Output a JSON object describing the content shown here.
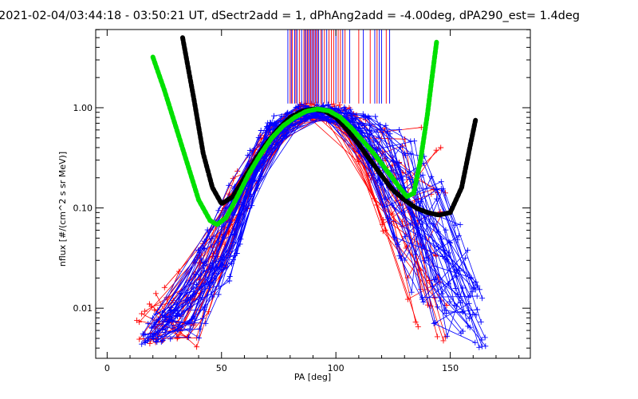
{
  "chart_data": {
    "type": "line",
    "title": "2021-02-04/03:44:18 - 03:50:21 UT, dSectr2add = 1, dPhAng2add = -4.00deg, dPA290_est=   1.4deg",
    "xlabel": "PA [deg]",
    "ylabel": "nflux [#/(cm^2 s sr MeV)]",
    "xlim": [
      -5,
      185
    ],
    "ylim_log10": [
      -2.5,
      0.78
    ],
    "x_scale": "linear",
    "y_scale": "log",
    "x_ticks": [
      0,
      50,
      100,
      150
    ],
    "x_tick_labels": [
      "0",
      "50",
      "100",
      "150"
    ],
    "y_ticks": [
      0.01,
      0.1,
      1.0
    ],
    "y_tick_labels": [
      "0.01",
      "0.10",
      "1.00"
    ],
    "grid": false,
    "legend": "none",
    "colors": {
      "red_series": "#ff0000",
      "blue_series": "#0000ff",
      "black_fit": "#000000",
      "green_fit": "#00e000"
    },
    "black_fit_curve": {
      "x": [
        33,
        38,
        42,
        46,
        50,
        55,
        60,
        65,
        70,
        75,
        80,
        85,
        90,
        95,
        100,
        105,
        110,
        115,
        120,
        125,
        130,
        135,
        140,
        145,
        150,
        155,
        158,
        161
      ],
      "y": [
        5.0,
        1.2,
        0.35,
        0.16,
        0.11,
        0.13,
        0.2,
        0.31,
        0.45,
        0.62,
        0.8,
        0.92,
        0.97,
        0.93,
        0.8,
        0.6,
        0.43,
        0.3,
        0.21,
        0.15,
        0.12,
        0.1,
        0.09,
        0.085,
        0.09,
        0.16,
        0.35,
        0.75
      ]
    },
    "green_fit_curve": {
      "x": [
        20,
        25,
        30,
        35,
        40,
        45,
        48,
        52,
        57,
        62,
        67,
        72,
        77,
        82,
        87,
        92,
        97,
        102,
        107,
        112,
        117,
        122,
        127,
        131,
        134,
        137,
        140,
        142,
        144
      ],
      "y": [
        3.2,
        1.5,
        0.65,
        0.28,
        0.12,
        0.075,
        0.068,
        0.08,
        0.13,
        0.22,
        0.34,
        0.5,
        0.66,
        0.8,
        0.92,
        0.97,
        0.93,
        0.8,
        0.62,
        0.46,
        0.34,
        0.24,
        0.17,
        0.13,
        0.14,
        0.3,
        0.85,
        2.0,
        4.5
      ]
    },
    "red_series_envelope": {
      "x": [
        13,
        25,
        40,
        55,
        70,
        85,
        95,
        105,
        115,
        130,
        140,
        150
      ],
      "y_low": [
        0.004,
        0.004,
        0.004,
        0.04,
        0.3,
        0.7,
        0.75,
        0.5,
        0.15,
        0.012,
        0.004,
        0.004
      ],
      "y_high": [
        0.008,
        0.02,
        0.04,
        0.2,
        0.7,
        1.1,
        1.2,
        1.1,
        0.8,
        0.6,
        0.8,
        0.3
      ]
    },
    "blue_series_envelope": {
      "x": [
        15,
        30,
        40,
        50,
        60,
        70,
        85,
        95,
        105,
        120,
        135,
        150,
        160,
        167
      ],
      "y_low": [
        0.004,
        0.005,
        0.005,
        0.01,
        0.06,
        0.3,
        0.75,
        0.8,
        0.6,
        0.12,
        0.01,
        0.004,
        0.004,
        0.004
      ],
      "y_high": [
        0.006,
        0.015,
        0.04,
        0.12,
        0.4,
        0.8,
        1.15,
        1.1,
        1.0,
        0.8,
        0.5,
        0.15,
        0.03,
        0.01
      ]
    },
    "overflow_spikes": {
      "red_x": [
        80,
        81,
        82.5,
        84,
        86,
        87,
        88,
        89,
        90,
        91,
        92,
        93.5,
        95,
        97,
        98,
        99,
        101,
        102,
        104,
        110,
        115,
        118,
        122
      ],
      "blue_x": [
        79,
        80.5,
        82,
        83,
        85,
        86.5,
        87.5,
        88.5,
        89.5,
        90.5,
        91.5,
        92.5,
        94,
        96,
        100,
        103,
        106,
        112,
        117,
        119,
        120,
        123.5
      ]
    }
  }
}
